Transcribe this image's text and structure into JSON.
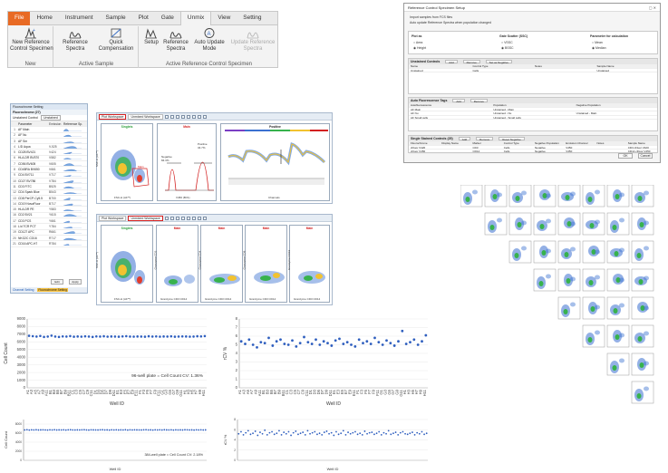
{
  "ribbon": {
    "tabs": [
      "File",
      "Home",
      "Instrument",
      "Sample",
      "Plot",
      "Gate",
      "Unmix",
      "View",
      "Setting"
    ],
    "active_tab": "Unmix",
    "groups": [
      {
        "label": "New",
        "buttons": [
          {
            "label": "New Reference\nControl Specimen",
            "icon": "new-reference-icon",
            "enabled": true
          }
        ]
      },
      {
        "label": "Active Sample",
        "buttons": [
          {
            "label": "Reference\nSpectra",
            "icon": "spectra-icon",
            "enabled": true
          },
          {
            "label": "Quick\nCompensation",
            "icon": "compensation-icon",
            "enabled": true
          }
        ]
      },
      {
        "label": "Active Reference Control Specimen",
        "buttons": [
          {
            "label": "Setup",
            "icon": "setup-icon",
            "enabled": true
          },
          {
            "label": "Reference\nSpectra",
            "icon": "spectra-icon",
            "enabled": true
          },
          {
            "label": "Auto Update\nMode",
            "icon": "auto-update-icon",
            "enabled": true
          },
          {
            "label": "Update Reference\nSpectra",
            "icon": "update-icon",
            "enabled": false
          }
        ]
      }
    ]
  },
  "dialog": {
    "title": "Reference Control Specimen Setup",
    "note1": "Import samples from FCS files",
    "note2": "Auto update Reference Spectra when population changed",
    "plot_as": {
      "label": "Plot as",
      "options": [
        "Area",
        "Height"
      ],
      "selected": "Height"
    },
    "gate_scatter": {
      "label": "Gate Scatter (SSC)",
      "options": [
        "VSSC",
        "BSSC"
      ],
      "selected": "BSSC"
    },
    "param_calc": {
      "label": "Parameter for calculation",
      "options": [
        "Mean",
        "Median"
      ],
      "selected": "Median"
    },
    "unstained": {
      "title": "Unstained Controls",
      "buttons": [
        "Add",
        "Remove",
        "Set as Negative"
      ],
      "columns": [
        "Name",
        "Control Type",
        "Notes",
        "Sample Name"
      ],
      "rows": [
        [
          "Unstained",
          "Cells",
          "",
          "Unstained"
        ]
      ]
    },
    "autofluor": {
      "title": "Auto Fluorescence Tags",
      "buttons": [
        "Add",
        "Remove"
      ],
      "columns": [
        "Autofluorescence",
        "Population",
        "Negative Population"
      ],
      "rows": [
        [
          "AF Main",
          "Unstained - Main",
          ""
        ],
        [
          "AF Nu",
          "Unstained - Nu",
          "Unstained - Main"
        ],
        [
          "AF Small cells",
          "Unstained - Small cells",
          ""
        ]
      ]
    },
    "single": {
      "title": "Single Stained Controls (25)",
      "buttons": [
        "Add",
        "Remove",
        "Reset Negative"
      ],
      "columns": [
        "Fluorochrome",
        "Display Name",
        "Marker",
        "Control Type",
        "Negative Population",
        "Emission Channel",
        "Notes",
        "Sample Name"
      ],
      "rows": [
        [
          "cFluor V420",
          "",
          "CD3",
          "Cells",
          "Negative",
          "V450",
          "",
          "CD3 cFluor V420"
        ],
        [
          "cFluor V450",
          "",
          "CD14",
          "Cells",
          "Negative",
          "V450",
          "",
          "CD14 cFluor V450"
        ]
      ]
    },
    "ok": "OK",
    "cancel": "Cancel"
  },
  "left_panel": {
    "title": "Fluorochrome Setting",
    "subtitle": "Fluorochrome (27)",
    "control_label": "Unstained Control",
    "control_value": "Unstained",
    "columns": [
      "Parameter",
      "Emission",
      "Reference Sp."
    ],
    "rows": [
      [
        "AF Main",
        ""
      ],
      [
        "AF Nu",
        ""
      ],
      [
        "AF Sm",
        ""
      ],
      [
        "L/D Aqua",
        "V-525"
      ],
      [
        "CD28 BV421",
        "V424"
      ],
      [
        "HLA-DR BV570",
        "V582"
      ],
      [
        "CD56 BV605",
        "V605"
      ],
      [
        "CD45RA BV650",
        "V661"
      ],
      [
        "CD4 BV711",
        "V717"
      ],
      [
        "CD27 BV786",
        "V784"
      ],
      [
        "CD3 FITC",
        "B525"
      ],
      [
        "CD4 Spark Blue",
        "B543"
      ],
      [
        "CD8 PerCP-Cy5.5",
        "B700"
      ],
      [
        "CD19 NovaFluor",
        "B717"
      ],
      [
        "HLA-DR PE",
        "Y583"
      ],
      [
        "CD2 BV21",
        "Y615"
      ],
      [
        "CD3 PCS",
        "Y661"
      ],
      [
        "L/d TCR PCT",
        "Y784"
      ],
      [
        "CD127 APC",
        "R661"
      ],
      [
        "NKG2C CD16",
        "R717"
      ],
      [
        "CD16 APC-H7",
        "R784"
      ]
    ],
    "ok": "Edit",
    "apply": "Apply",
    "footer_tabs": [
      "Channel Setting",
      "Fluorochrome Setting"
    ]
  },
  "plot_top": {
    "tabs": [
      "Plot Workspace",
      "Unmixed Workspace"
    ],
    "highlight": "Plot Workspace",
    "p1": {
      "title": "Singlets",
      "xlabel": "FSC-H (AF**)",
      "ylabel": "SSC-H (AF**)",
      "gate": "Main"
    },
    "p2": {
      "title": "Main",
      "xlabel": "V450 (BV1)",
      "gate_neg": "Negative",
      "gate_neg_val": "84.3%",
      "gate_pos": "Positive",
      "gate_pos_val": "34.7%"
    },
    "p3": {
      "title": "Positive",
      "xlabel": "Channels"
    }
  },
  "plot_bottom": {
    "tabs": [
      "Plot Workspace",
      "Unmixed Workspace"
    ],
    "highlight": "Unmixed Workspace",
    "p1": {
      "title": "Singlets",
      "xlabel": "FSC-H (AF**)",
      "ylabel": "SSC-H (AF**)"
    },
    "p2": {
      "title": "Main",
      "xlabel": "Granzyme CD3 CD14",
      "ylabel": "Granzyme CD3"
    },
    "p3": {
      "title": "Main",
      "xlabel": "Granzyme CD3 CD14",
      "ylabel": "Granzyme CD4"
    },
    "p4": {
      "title": "Main",
      "xlabel": "Granzyme CD3 CD14",
      "ylabel": "Granzyme CD8"
    },
    "p5": {
      "title": "Main",
      "xlabel": "Granzyme CD3 CD14",
      "ylabel": "Granzyme CD19"
    }
  },
  "chart_data": [
    {
      "type": "scatter",
      "title": "",
      "xlabel": "Well ID",
      "ylabel": "Cell Count",
      "annotation": "96-well plate = Cell Count CV: 1.36%",
      "categories": [
        "A1",
        "A3",
        "A5",
        "A7",
        "A9",
        "A11",
        "B1",
        "B3",
        "B5",
        "B7",
        "B9",
        "B11",
        "C1",
        "C3",
        "C5",
        "C7",
        "C9",
        "C11",
        "D1",
        "D3",
        "D5",
        "D7",
        "D9",
        "D11",
        "E1",
        "E3",
        "E5",
        "E7",
        "E9",
        "E11",
        "F1",
        "F3",
        "F5",
        "F7",
        "F9",
        "F11",
        "G1",
        "G3",
        "G5",
        "G7",
        "G9",
        "G11",
        "H1",
        "H3",
        "H5",
        "H7",
        "H9",
        "H11"
      ],
      "ylim": [
        0,
        9000
      ],
      "yticks": [
        0,
        1000,
        2000,
        3000,
        4000,
        5000,
        6000,
        7000,
        8000,
        9000
      ],
      "series": [
        {
          "values": [
            6800,
            6750,
            6700,
            6780,
            6650,
            6700,
            6820,
            6700,
            6650,
            6720,
            6700,
            6760,
            6680,
            6710,
            6690,
            6730,
            6700,
            6650,
            6720,
            6700,
            6740,
            6690,
            6710,
            6700,
            6680,
            6720,
            6750,
            6700,
            6690,
            6710,
            6700,
            6680,
            6740,
            6700,
            6720,
            6690,
            6710,
            6700,
            6730,
            6680,
            6700,
            6720,
            6710,
            6690,
            6700,
            6740,
            6720,
            6760
          ]
        }
      ]
    },
    {
      "type": "scatter",
      "title": "",
      "xlabel": "Well ID",
      "ylabel": "rCV %",
      "categories": [
        "A1",
        "A3",
        "A5",
        "A7",
        "A9",
        "A11",
        "B1",
        "B3",
        "B5",
        "B7",
        "B9",
        "B11",
        "C1",
        "C3",
        "C5",
        "C7",
        "C9",
        "C11",
        "D1",
        "D3",
        "D5",
        "D7",
        "D9",
        "D11",
        "E1",
        "E3",
        "E5",
        "E7",
        "E9",
        "E11",
        "F1",
        "F3",
        "F5",
        "F7",
        "F9",
        "F11",
        "G1",
        "G3",
        "G5",
        "G7",
        "G9",
        "G11",
        "H1",
        "H3",
        "H5",
        "H7",
        "H9",
        "H11"
      ],
      "ylim": [
        0,
        8
      ],
      "yticks": [
        0,
        1,
        2,
        3,
        4,
        5,
        6,
        7,
        8
      ],
      "series": [
        {
          "values": [
            5.4,
            5.1,
            5.6,
            5.0,
            4.7,
            5.3,
            5.2,
            5.8,
            4.9,
            5.4,
            5.6,
            5.1,
            5.0,
            5.5,
            4.8,
            5.2,
            5.9,
            5.3,
            5.1,
            5.6,
            5.0,
            5.4,
            5.2,
            4.9,
            5.5,
            5.7,
            5.1,
            5.3,
            5.0,
            4.8,
            5.6,
            5.2,
            5.4,
            5.1,
            5.8,
            5.3,
            5.0,
            5.5,
            5.2,
            4.9,
            5.4,
            6.6,
            5.1,
            5.3,
            5.6,
            5.0,
            5.4,
            6.1
          ]
        }
      ]
    },
    {
      "type": "scatter",
      "title": "",
      "xlabel": "Well ID",
      "ylabel": "Cell Count",
      "annotation": "384-well plate = Cell Count CV: 2.18%",
      "ylim": [
        0,
        9000
      ],
      "yticks": [
        0,
        2000,
        4000,
        6000,
        8000
      ],
      "series": [
        {
          "values": [
            6700,
            6750,
            6680,
            6720,
            6700,
            6740,
            6690,
            6710,
            6730,
            6700,
            6680,
            6720,
            6700,
            6750,
            6690,
            6710,
            6700,
            6730,
            6680,
            6720,
            6740,
            6700,
            6690,
            6710,
            6700,
            6720,
            6750,
            6700,
            6680,
            6730,
            6710,
            6700,
            6690,
            6720,
            6740,
            6700,
            6710,
            6680,
            6730,
            6700,
            6720,
            6690,
            6710,
            6700,
            6740,
            6680,
            6720,
            6700,
            6730,
            6710,
            6700,
            6690,
            6720,
            6750,
            6700,
            6710,
            6680,
            6730,
            6700,
            6720,
            6690,
            6740,
            6710,
            6700,
            6720,
            6680,
            6730,
            6700,
            6710,
            6690,
            6740,
            6720,
            6700,
            6710,
            6680,
            6730,
            6700,
            6720,
            6690,
            6710
          ]
        }
      ]
    },
    {
      "type": "scatter",
      "title": "",
      "xlabel": "Well ID",
      "ylabel": "rCV %",
      "ylim": [
        0,
        8
      ],
      "yticks": [
        0,
        2,
        4,
        6,
        8
      ],
      "series": [
        {
          "values": [
            5.2,
            5.6,
            5.0,
            5.4,
            5.8,
            5.1,
            5.3,
            5.7,
            4.9,
            5.5,
            5.2,
            5.9,
            5.0,
            5.4,
            5.6,
            5.1,
            5.3,
            5.8,
            5.0,
            5.5,
            5.2,
            5.6,
            4.9,
            5.4,
            5.7,
            5.1,
            5.3,
            5.5,
            5.0,
            5.8,
            5.2,
            5.4,
            5.6,
            5.1,
            5.3,
            5.0,
            5.5,
            5.7,
            5.2,
            5.4,
            4.9,
            5.6,
            5.1,
            5.3,
            5.8,
            5.0,
            5.5,
            5.2,
            5.4,
            5.6,
            5.1,
            5.3,
            5.0,
            5.7,
            5.2,
            5.4,
            5.5,
            5.1,
            5.3,
            5.6,
            5.0,
            5.4,
            5.2,
            5.8,
            5.1,
            5.3,
            5.5,
            5.0,
            5.4,
            5.6,
            5.2,
            5.1,
            5.3,
            5.5,
            5.0,
            5.4,
            5.2,
            5.6,
            5.1,
            5.3
          ]
        }
      ]
    }
  ],
  "colors": {
    "accent": "#3a6fc4",
    "file_tab": "#e86a24",
    "highlight": "#d32020",
    "point": "#2f5fbf"
  }
}
